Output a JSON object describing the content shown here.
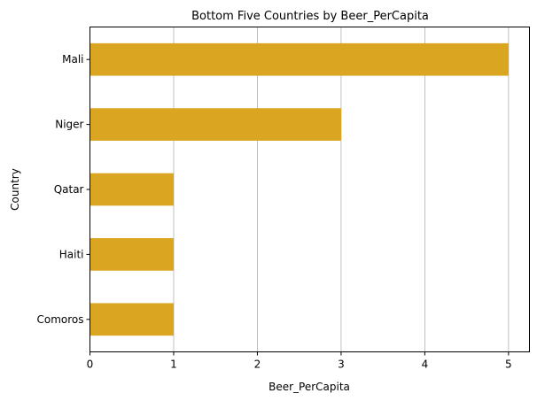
{
  "chart_data": {
    "type": "bar",
    "orientation": "horizontal",
    "title": "Bottom Five Countries by Beer_PerCapita",
    "xlabel": "Beer_PerCapita",
    "ylabel": "Country",
    "categories": [
      "Mali",
      "Niger",
      "Qatar",
      "Haiti",
      "Comoros"
    ],
    "values": [
      5,
      3,
      1,
      1,
      1
    ],
    "xlim": [
      0,
      5.25
    ],
    "xticks": [
      "0",
      "1",
      "2",
      "3",
      "4",
      "5"
    ],
    "grid": "vertical",
    "legend": "none",
    "bar_color": "#DAA520"
  }
}
